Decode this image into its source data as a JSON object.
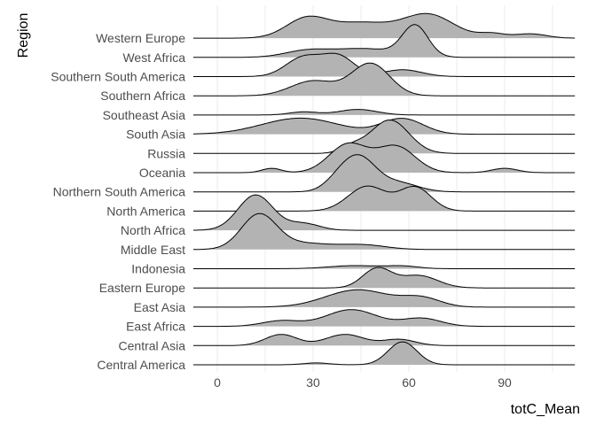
{
  "chart_data": {
    "type": "ridgeline",
    "xlabel": "totC_Mean",
    "ylabel": "Region",
    "xlim": [
      -8,
      112
    ],
    "x_ticks": [
      0,
      30,
      60,
      90
    ],
    "grid": "vertical major and minor lines",
    "fill_color": "#b3b3b3",
    "line_color": "#000000",
    "categories": [
      "Central America",
      "Central Asia",
      "East Africa",
      "East Asia",
      "Eastern Europe",
      "Indonesia",
      "Middle East",
      "North Africa",
      "North America",
      "Northern South America",
      "Oceania",
      "Russia",
      "South Asia",
      "Southeast Asia",
      "Southern Africa",
      "Southern South America",
      "West Africa",
      "Western Europe"
    ],
    "series": [
      {
        "name": "Central America",
        "peaks": [
          {
            "mu": 31,
            "sd": 4,
            "h": 0.15
          },
          {
            "mu": 58,
            "sd": 4.5,
            "h": 1.85
          }
        ]
      },
      {
        "name": "Central Asia",
        "peaks": [
          {
            "mu": 20,
            "sd": 5,
            "h": 0.9
          },
          {
            "mu": 40,
            "sd": 6,
            "h": 0.9
          },
          {
            "mu": 57,
            "sd": 5,
            "h": 0.5
          }
        ]
      },
      {
        "name": "East Africa",
        "peaks": [
          {
            "mu": 20,
            "sd": 6,
            "h": 0.45
          },
          {
            "mu": 42,
            "sd": 8,
            "h": 1.35
          },
          {
            "mu": 64,
            "sd": 6,
            "h": 0.65
          }
        ]
      },
      {
        "name": "East Asia",
        "peaks": [
          {
            "mu": 44,
            "sd": 10,
            "h": 1.4
          },
          {
            "mu": 64,
            "sd": 6,
            "h": 0.7
          }
        ]
      },
      {
        "name": "Eastern Europe",
        "peaks": [
          {
            "mu": 50,
            "sd": 4.5,
            "h": 1.55
          },
          {
            "mu": 63,
            "sd": 6,
            "h": 1.0
          }
        ]
      },
      {
        "name": "Indonesia",
        "peaks": [
          {
            "mu": 43,
            "sd": 8,
            "h": 0.25
          },
          {
            "mu": 58,
            "sd": 5,
            "h": 0.2
          }
        ]
      },
      {
        "name": "Middle East",
        "peaks": [
          {
            "mu": 13,
            "sd": 5.5,
            "h": 2.75
          },
          {
            "mu": 27,
            "sd": 9,
            "h": 0.5
          },
          {
            "mu": 46,
            "sd": 7,
            "h": 0.35
          }
        ]
      },
      {
        "name": "North Africa",
        "peaks": [
          {
            "mu": 12,
            "sd": 5.5,
            "h": 2.85
          },
          {
            "mu": 27,
            "sd": 5,
            "h": 0.55
          }
        ]
      },
      {
        "name": "North America",
        "peaks": [
          {
            "mu": 47,
            "sd": 6,
            "h": 2.0
          },
          {
            "mu": 62,
            "sd": 5,
            "h": 1.9
          }
        ]
      },
      {
        "name": "Northern South America",
        "peaks": [
          {
            "mu": 37,
            "sd": 4,
            "h": 0.4
          },
          {
            "mu": 44,
            "sd": 5.5,
            "h": 2.85
          },
          {
            "mu": 57,
            "sd": 6,
            "h": 0.7
          }
        ]
      },
      {
        "name": "Oceania",
        "peaks": [
          {
            "mu": 17,
            "sd": 3,
            "h": 0.35
          },
          {
            "mu": 41,
            "sd": 6,
            "h": 2.3
          },
          {
            "mu": 56,
            "sd": 6,
            "h": 2.1
          },
          {
            "mu": 90,
            "sd": 4,
            "h": 0.35
          }
        ]
      },
      {
        "name": "Russia",
        "peaks": [
          {
            "mu": 42,
            "sd": 3.5,
            "h": 0.5
          },
          {
            "mu": 54,
            "sd": 6,
            "h": 2.7
          }
        ]
      },
      {
        "name": "South Asia",
        "peaks": [
          {
            "mu": 26,
            "sd": 12,
            "h": 1.3
          },
          {
            "mu": 58,
            "sd": 6.5,
            "h": 1.25
          }
        ]
      },
      {
        "name": "Southeast Asia",
        "peaks": [
          {
            "mu": 27,
            "sd": 4.5,
            "h": 0.25
          },
          {
            "mu": 44,
            "sd": 6,
            "h": 0.45
          }
        ]
      },
      {
        "name": "Southern Africa",
        "peaks": [
          {
            "mu": 30,
            "sd": 7,
            "h": 1.2
          },
          {
            "mu": 48,
            "sd": 6,
            "h": 2.6
          }
        ]
      },
      {
        "name": "Southern South America",
        "peaks": [
          {
            "mu": 27,
            "sd": 5.5,
            "h": 1.55
          },
          {
            "mu": 38,
            "sd": 5,
            "h": 1.6
          },
          {
            "mu": 58,
            "sd": 6,
            "h": 0.55
          }
        ]
      },
      {
        "name": "West Africa",
        "peaks": [
          {
            "mu": 28,
            "sd": 7,
            "h": 0.5
          },
          {
            "mu": 46,
            "sd": 10,
            "h": 0.7
          },
          {
            "mu": 62,
            "sd": 4,
            "h": 2.45
          }
        ]
      },
      {
        "name": "Western Europe",
        "peaks": [
          {
            "mu": 28,
            "sd": 6.5,
            "h": 1.55
          },
          {
            "mu": 45,
            "sd": 9,
            "h": 1.2
          },
          {
            "mu": 66,
            "sd": 8,
            "h": 1.9
          },
          {
            "mu": 86,
            "sd": 4,
            "h": 0.35
          },
          {
            "mu": 98,
            "sd": 5,
            "h": 0.35
          }
        ]
      }
    ]
  }
}
